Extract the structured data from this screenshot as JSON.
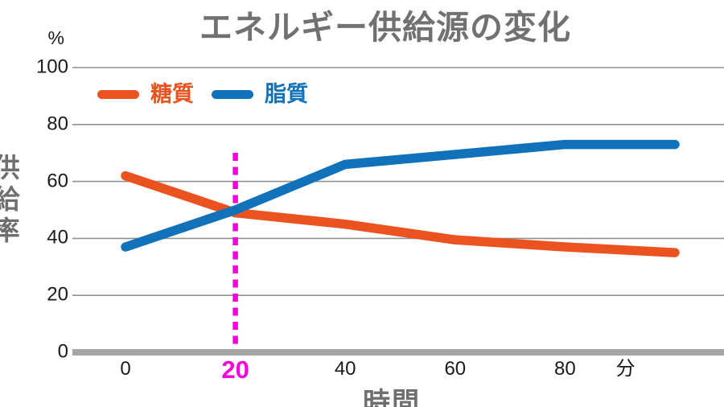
{
  "title": "エネルギー供給源の変化",
  "y_axis": {
    "unit": "%",
    "title": "供給率",
    "ticks": [
      0,
      20,
      40,
      60,
      80,
      100
    ]
  },
  "x_axis": {
    "title": "時間",
    "unit": "分",
    "ticks": [
      0,
      20,
      40,
      60,
      80
    ],
    "highlight_tick": 20
  },
  "legend": [
    {
      "name": "糖質",
      "color": "#EA5320"
    },
    {
      "name": "脂質",
      "color": "#1272B9"
    }
  ],
  "colors": {
    "title_gray": "#717171",
    "axis_label_gray": "#6F6F6F",
    "tick_text": "#1A1A1A",
    "gridline": "#909090",
    "baseline": "#A6A6A6",
    "marker_magenta": "#F400DC"
  },
  "chart_data": {
    "type": "line",
    "title": "エネルギー供給源の変化",
    "xlabel": "時間",
    "ylabel": "供給率",
    "x_unit": "分",
    "y_unit": "%",
    "xlim": [
      0,
      100
    ],
    "ylim": [
      0,
      100
    ],
    "grid": true,
    "legend_position": "top-left inside",
    "series": [
      {
        "name": "糖質",
        "color": "#EA5320",
        "points": [
          [
            0,
            62
          ],
          [
            20,
            49
          ],
          [
            40,
            45
          ],
          [
            60,
            39.5
          ],
          [
            80,
            37
          ],
          [
            100,
            35
          ]
        ]
      },
      {
        "name": "脂質",
        "color": "#1272B9",
        "points": [
          [
            0,
            37
          ],
          [
            20,
            50
          ],
          [
            40,
            66
          ],
          [
            80,
            73
          ],
          [
            100,
            73
          ]
        ]
      }
    ],
    "marker_line": {
      "x": 20,
      "color": "#F400DC",
      "style": "dashed",
      "label": "20"
    }
  }
}
